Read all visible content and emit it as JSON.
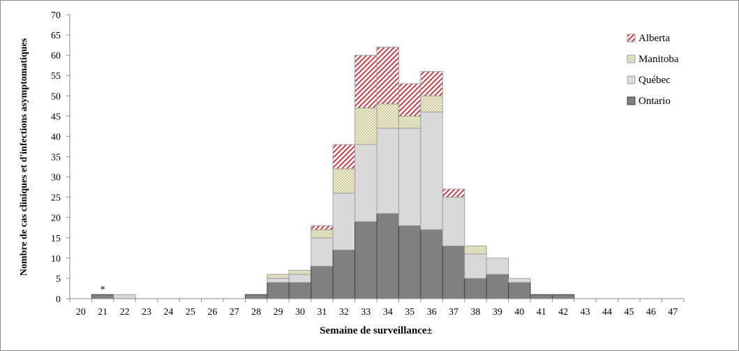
{
  "chart_data": {
    "type": "bar",
    "stacked": true,
    "xlabel": "Semaine de surveillance±",
    "ylabel": "Nombre de cas cliniques et d'infections asymptomatiques",
    "ylim": [
      0,
      70
    ],
    "yticks": [
      0,
      5,
      10,
      15,
      20,
      25,
      30,
      35,
      40,
      45,
      50,
      55,
      60,
      65,
      70
    ],
    "grid": false,
    "legend_position": "top-right",
    "categories": [
      "20",
      "21",
      "22",
      "23",
      "24",
      "25",
      "26",
      "27",
      "28",
      "29",
      "30",
      "31",
      "32",
      "33",
      "34",
      "35",
      "36",
      "37",
      "38",
      "39",
      "40",
      "41",
      "42",
      "43",
      "44",
      "45",
      "46",
      "47"
    ],
    "annotation": {
      "category": "21",
      "text": "*"
    },
    "series": [
      {
        "name": "Ontario",
        "color": "#808080",
        "pattern": "solid",
        "values": [
          0,
          1,
          0,
          0,
          0,
          0,
          0,
          0,
          1,
          4,
          4,
          8,
          12,
          19,
          21,
          18,
          17,
          13,
          5,
          6,
          4,
          1,
          1,
          0,
          0,
          0,
          0,
          0
        ]
      },
      {
        "name": "Québec",
        "color": "#d9d9d9",
        "pattern": "solid",
        "values": [
          0,
          0,
          1,
          0,
          0,
          0,
          0,
          0,
          0,
          1,
          2,
          7,
          14,
          19,
          21,
          24,
          29,
          12,
          6,
          4,
          1,
          0,
          0,
          0,
          0,
          0,
          0,
          0
        ]
      },
      {
        "name": "Manitoba",
        "color": "#c8c89a",
        "pattern": "checker",
        "values": [
          0,
          0,
          0,
          0,
          0,
          0,
          0,
          0,
          0,
          1,
          1,
          2,
          6,
          9,
          6,
          3,
          4,
          0,
          2,
          0,
          0,
          0,
          0,
          0,
          0,
          0,
          0,
          0
        ]
      },
      {
        "name": "Alberta",
        "color": "#c0404a",
        "pattern": "diagonal",
        "values": [
          0,
          0,
          0,
          0,
          0,
          0,
          0,
          0,
          0,
          0,
          0,
          1,
          6,
          13,
          14,
          8,
          6,
          2,
          0,
          0,
          0,
          0,
          0,
          0,
          0,
          0,
          0,
          0
        ]
      }
    ]
  }
}
